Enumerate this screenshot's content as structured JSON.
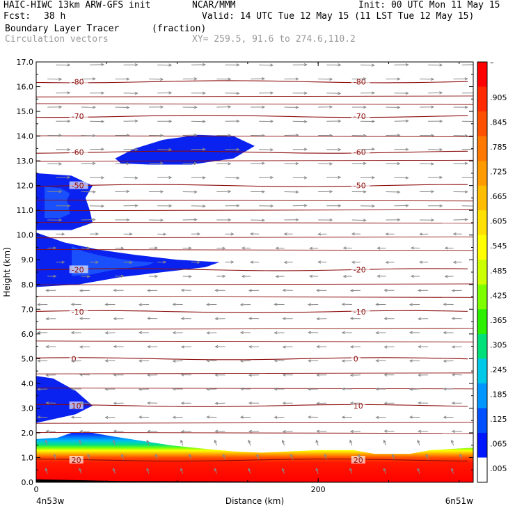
{
  "header": {
    "model": "HAIC-HIWC 13km ARW-GFS init",
    "org": "NCAR/MMM",
    "init": "Init: 00 UTC Mon 11 May 15",
    "fcst_label": "Fcst:",
    "fcst_value": "38 h",
    "valid": "Valid: 14 UTC Tue 12 May 15 (11 LST Tue 12 May 15)",
    "field_name": "Boundary Layer Tracer",
    "field_units": "(fraction)",
    "vector_name": "Circulation vectors",
    "xy_range": "XY= 259.5, 91.6 to 274.6,110.2"
  },
  "chart_data": {
    "type": "heatmap",
    "xlabel": "Distance (km)",
    "ylabel": "Height (km)",
    "xlim": [
      0,
      310
    ],
    "ylim": [
      0,
      17
    ],
    "x_ticks": [
      "0",
      "200"
    ],
    "x_end_labels": {
      "left": "4n53w",
      "right": "6n51w"
    },
    "y_ticks": [
      "0.0",
      "1.0",
      "2.0",
      "3.0",
      "4.0",
      "5.0",
      "6.0",
      "7.0",
      "8.0",
      "9.0",
      "10.0",
      "11.0",
      "12.0",
      "13.0",
      "14.0",
      "15.0",
      "16.0",
      "17.0"
    ],
    "colorbar": {
      "labels": [
        "–",
        ".905",
        ".845",
        ".785",
        ".725",
        ".665",
        ".605",
        ".545",
        ".485",
        ".425",
        ".365",
        ".305",
        ".245",
        ".185",
        ".125",
        ".065",
        ".005"
      ],
      "colors": [
        "#ff0000",
        "#ff2a00",
        "#ff5000",
        "#ff7800",
        "#ff9a00",
        "#ffbd00",
        "#ffe000",
        "#ffff00",
        "#ccff00",
        "#7dff00",
        "#2cf000",
        "#00e07a",
        "#00c8e8",
        "#0096ff",
        "#0050ff",
        "#0018ff",
        "#ffffff"
      ]
    },
    "temperature_contours": [
      {
        "label": "-80",
        "y": 16.2
      },
      {
        "label": "-70",
        "y": 14.8
      },
      {
        "label": "-60",
        "y": 13.35
      },
      {
        "label": "-50",
        "y": 12.0
      },
      {
        "label": "-20",
        "y": 8.6
      },
      {
        "label": "-10",
        "y": 6.9
      },
      {
        "label": "0",
        "y": 5.0
      },
      {
        "label": "10",
        "y": 3.1
      },
      {
        "label": "20",
        "y": 0.9
      }
    ],
    "tracer_regions": [
      {
        "name": "upper-cloud",
        "level": 0.065,
        "points": [
          [
            56,
            13.1
          ],
          [
            70,
            13.5
          ],
          [
            90,
            13.85
          ],
          [
            115,
            14.05
          ],
          [
            140,
            14.0
          ],
          [
            155,
            13.6
          ],
          [
            140,
            13.1
          ],
          [
            110,
            12.85
          ],
          [
            80,
            12.85
          ],
          [
            60,
            12.9
          ]
        ]
      },
      {
        "name": "left-upper-cloud",
        "level": 0.065,
        "points": [
          [
            0,
            12.5
          ],
          [
            25,
            12.4
          ],
          [
            40,
            12.0
          ],
          [
            35,
            11.5
          ],
          [
            38,
            11.0
          ],
          [
            40,
            10.5
          ],
          [
            25,
            10.2
          ],
          [
            0,
            10.2
          ]
        ]
      },
      {
        "name": "mid-cloud",
        "level": 0.065,
        "points": [
          [
            0,
            10.1
          ],
          [
            20,
            9.7
          ],
          [
            45,
            9.4
          ],
          [
            70,
            9.2
          ],
          [
            100,
            9.0
          ],
          [
            130,
            8.9
          ],
          [
            120,
            8.7
          ],
          [
            90,
            8.5
          ],
          [
            60,
            8.3
          ],
          [
            30,
            8.0
          ],
          [
            0,
            7.9
          ]
        ]
      },
      {
        "name": "low-cloud",
        "level": 0.065,
        "points": [
          [
            0,
            4.3
          ],
          [
            12,
            4.2
          ],
          [
            28,
            3.7
          ],
          [
            40,
            3.1
          ],
          [
            28,
            2.75
          ],
          [
            12,
            2.55
          ],
          [
            0,
            2.4
          ]
        ]
      }
    ],
    "boundary_layer_top_km": [
      [
        0,
        1.75
      ],
      [
        15,
        1.8
      ],
      [
        25,
        2.0
      ],
      [
        40,
        2.0
      ],
      [
        55,
        1.85
      ],
      [
        95,
        1.5
      ],
      [
        120,
        1.35
      ],
      [
        140,
        1.25
      ],
      [
        160,
        1.2
      ],
      [
        180,
        1.25
      ],
      [
        200,
        1.3
      ],
      [
        225,
        1.3
      ],
      [
        240,
        1.15
      ],
      [
        265,
        1.15
      ],
      [
        280,
        1.3
      ],
      [
        310,
        1.4
      ]
    ]
  }
}
